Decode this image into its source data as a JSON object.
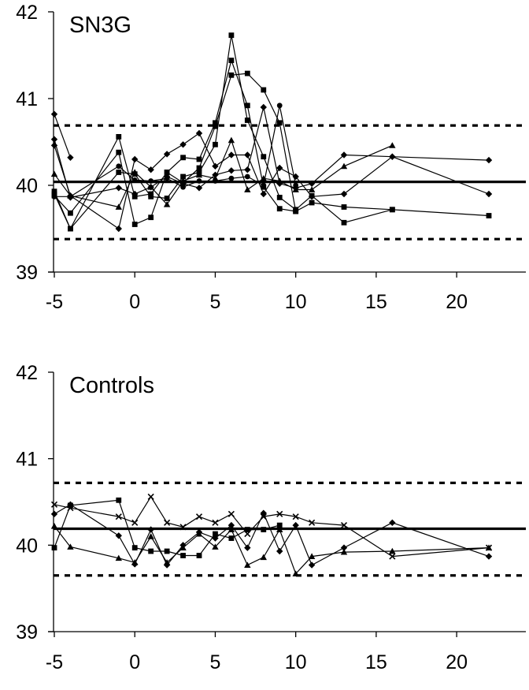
{
  "chart_data": [
    {
      "type": "line",
      "title": "SN3G",
      "xlim": [
        -5,
        22
      ],
      "ylim": [
        39,
        42
      ],
      "xticks": [
        "-5",
        "0",
        "5",
        "10",
        "15",
        "20"
      ],
      "yticks": [
        "39",
        "40",
        "41",
        "42"
      ],
      "grid": false,
      "reference_lines": [
        {
          "style": "solid",
          "y": 40.04
        },
        {
          "style": "dashed",
          "y": 40.69
        },
        {
          "style": "dashed",
          "y": 39.38
        }
      ],
      "series": [
        {
          "marker": "diamond",
          "points": [
            [
              -5,
              40.82
            ],
            [
              -4,
              40.32
            ]
          ]
        },
        {
          "marker": "diamond",
          "points": [
            [
              -5,
              40.46
            ],
            [
              -4,
              39.88
            ],
            [
              -1,
              39.5
            ],
            [
              0,
              40.3
            ],
            [
              1,
              40.18
            ],
            [
              2,
              40.36
            ],
            [
              3,
              40.47
            ],
            [
              4,
              40.6
            ],
            [
              5,
              40.22
            ],
            [
              6,
              40.35
            ],
            [
              7,
              40.35
            ],
            [
              8,
              39.9
            ],
            [
              9,
              40.2
            ],
            [
              10,
              40.1
            ],
            [
              11,
              39.87
            ],
            [
              13,
              39.9
            ],
            [
              16,
              40.33
            ],
            [
              22,
              40.29
            ]
          ]
        },
        {
          "marker": "diamond",
          "points": [
            [
              -5,
              40.53
            ],
            [
              -4,
              39.86
            ],
            [
              -1,
              39.97
            ],
            [
              0,
              39.9
            ],
            [
              1,
              39.98
            ],
            [
              2,
              40.1
            ],
            [
              3,
              40.02
            ],
            [
              4,
              39.97
            ],
            [
              5,
              40.12
            ],
            [
              6,
              40.17
            ],
            [
              7,
              40.18
            ],
            [
              8,
              40.9
            ],
            [
              9,
              40.02
            ],
            [
              10,
              39.97
            ],
            [
              11,
              40.02
            ],
            [
              13,
              40.35
            ],
            [
              16,
              40.33
            ],
            [
              22,
              39.9
            ]
          ]
        },
        {
          "marker": "square",
          "points": [
            [
              -5,
              39.88
            ],
            [
              -4,
              39.68
            ],
            [
              -1,
              40.38
            ],
            [
              0,
              39.55
            ],
            [
              1,
              39.63
            ],
            [
              2,
              40.15
            ],
            [
              3,
              40.32
            ],
            [
              4,
              40.3
            ],
            [
              5,
              40.72
            ],
            [
              6,
              41.44
            ],
            [
              7,
              40.92
            ],
            [
              8,
              39.98
            ],
            [
              9,
              39.73
            ],
            [
              10,
              39.7
            ],
            [
              11,
              39.8
            ],
            [
              13,
              39.75
            ],
            [
              16,
              39.72
            ],
            [
              22,
              39.65
            ]
          ]
        },
        {
          "marker": "square",
          "points": [
            [
              -5,
              39.93
            ],
            [
              -4,
              39.5
            ],
            [
              -1,
              40.15
            ],
            [
              0,
              40.13
            ],
            [
              1,
              39.87
            ],
            [
              2,
              39.85
            ],
            [
              3,
              40.1
            ],
            [
              4,
              40.15
            ],
            [
              5,
              40.47
            ],
            [
              6,
              41.73
            ],
            [
              7,
              40.75
            ],
            [
              8,
              40.33
            ],
            [
              9,
              39.86
            ],
            [
              10,
              39.72
            ],
            [
              11,
              39.88
            ],
            [
              13,
              39.57
            ],
            [
              16,
              39.72
            ]
          ]
        },
        {
          "marker": "square",
          "points": [
            [
              -5,
              39.9
            ],
            [
              -4,
              39.5
            ],
            [
              -1,
              40.56
            ],
            [
              0,
              39.87
            ],
            [
              1,
              39.9
            ],
            [
              2,
              40.15
            ],
            [
              3,
              40.03
            ],
            [
              4,
              40.2
            ],
            [
              5,
              40.68
            ],
            [
              6,
              41.27
            ],
            [
              7,
              41.29
            ],
            [
              8,
              41.1
            ],
            [
              9,
              40.72
            ],
            [
              10,
              39.7
            ]
          ]
        },
        {
          "marker": "triangle",
          "points": [
            [
              -5,
              40.13
            ],
            [
              -4,
              39.88
            ],
            [
              -1,
              39.75
            ],
            [
              0,
              40.15
            ],
            [
              1,
              39.98
            ],
            [
              2,
              39.78
            ],
            [
              3,
              40.05
            ],
            [
              4,
              40.12
            ],
            [
              5,
              40.08
            ],
            [
              6,
              40.52
            ],
            [
              7,
              39.95
            ],
            [
              8,
              40.08
            ],
            [
              9,
              40.05
            ],
            [
              10,
              39.95
            ],
            [
              11,
              39.95
            ],
            [
              13,
              40.22
            ],
            [
              16,
              40.46
            ]
          ]
        },
        {
          "marker": "circle",
          "points": [
            [
              -5,
              39.87
            ],
            [
              -4,
              39.87
            ],
            [
              -1,
              40.22
            ],
            [
              0,
              40.06
            ],
            [
              1,
              40.05
            ],
            [
              2,
              40.08
            ],
            [
              3,
              39.98
            ],
            [
              4,
              40.05
            ],
            [
              5,
              40.05
            ],
            [
              6,
              40.08
            ],
            [
              7,
              40.1
            ],
            [
              8,
              40.0
            ],
            [
              9,
              40.92
            ],
            [
              10,
              40.0
            ]
          ]
        }
      ]
    },
    {
      "type": "line",
      "title": "Controls",
      "xlim": [
        -5,
        22
      ],
      "ylim": [
        39,
        42
      ],
      "xticks": [
        "-5",
        "0",
        "5",
        "10",
        "15",
        "20"
      ],
      "yticks": [
        "39",
        "40",
        "41",
        "42"
      ],
      "grid": false,
      "reference_lines": [
        {
          "style": "solid",
          "y": 40.19
        },
        {
          "style": "dashed",
          "y": 40.72
        },
        {
          "style": "dashed",
          "y": 39.65
        }
      ],
      "series": [
        {
          "marker": "cross",
          "points": [
            [
              -5,
              40.47
            ],
            [
              -4,
              40.43
            ],
            [
              -1,
              40.33
            ],
            [
              0,
              40.26
            ],
            [
              1,
              40.56
            ],
            [
              2,
              40.26
            ],
            [
              3,
              40.21
            ],
            [
              4,
              40.33
            ],
            [
              5,
              40.26
            ],
            [
              6,
              40.36
            ],
            [
              7,
              40.13
            ],
            [
              8,
              40.33
            ],
            [
              9,
              40.36
            ],
            [
              10,
              40.33
            ],
            [
              11,
              40.26
            ],
            [
              13,
              40.23
            ],
            [
              16,
              39.87
            ],
            [
              22,
              39.97
            ]
          ]
        },
        {
          "marker": "diamond",
          "points": [
            [
              -5,
              40.36
            ],
            [
              -4,
              40.47
            ],
            [
              -1,
              40.11
            ],
            [
              0,
              39.78
            ],
            [
              1,
              40.18
            ],
            [
              2,
              39.77
            ],
            [
              3,
              40.0
            ],
            [
              4,
              40.15
            ],
            [
              5,
              40.08
            ],
            [
              6,
              40.23
            ],
            [
              7,
              39.97
            ],
            [
              8,
              40.37
            ],
            [
              9,
              39.93
            ],
            [
              10,
              40.23
            ],
            [
              11,
              39.77
            ],
            [
              13,
              39.97
            ],
            [
              16,
              40.26
            ],
            [
              22,
              39.87
            ]
          ]
        },
        {
          "marker": "square",
          "points": [
            [
              -5,
              39.97
            ],
            [
              -4,
              40.46
            ],
            [
              -1,
              40.52
            ],
            [
              0,
              39.97
            ],
            [
              1,
              39.93
            ],
            [
              2,
              39.93
            ],
            [
              3,
              39.88
            ],
            [
              4,
              39.88
            ],
            [
              5,
              40.13
            ],
            [
              6,
              40.08
            ],
            [
              7,
              40.18
            ],
            [
              8,
              40.18
            ],
            [
              9,
              40.23
            ]
          ]
        },
        {
          "marker": "triangle",
          "points": [
            [
              -5,
              40.22
            ],
            [
              -4,
              39.98
            ],
            [
              -1,
              39.85
            ],
            [
              0,
              39.8
            ],
            [
              1,
              40.1
            ],
            [
              2,
              39.8
            ],
            [
              3,
              39.97
            ],
            [
              4,
              40.13
            ],
            [
              5,
              39.98
            ],
            [
              6,
              40.18
            ],
            [
              7,
              39.77
            ],
            [
              8,
              39.86
            ],
            [
              9,
              40.18
            ],
            [
              10,
              39.67
            ],
            [
              11,
              39.87
            ],
            [
              13,
              39.92
            ],
            [
              16,
              39.93
            ],
            [
              22,
              39.97
            ]
          ]
        }
      ]
    }
  ]
}
